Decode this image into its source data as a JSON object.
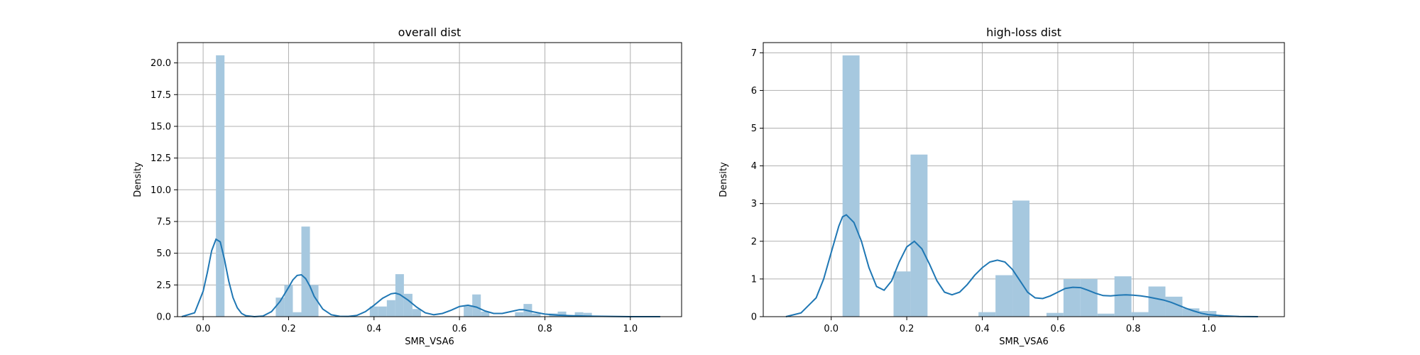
{
  "chart_data": [
    {
      "type": "bar",
      "title": "overall dist",
      "xlabel": "SMR_VSA6",
      "ylabel": "Density",
      "xlim": [
        -0.06,
        1.12
      ],
      "ylim": [
        0,
        21.6
      ],
      "xticks": [
        0.0,
        0.2,
        0.4,
        0.6,
        0.8,
        1.0
      ],
      "yticks": [
        0.0,
        2.5,
        5.0,
        7.5,
        10.0,
        12.5,
        15.0,
        17.5,
        20.0
      ],
      "grid": true,
      "bar_color": "#a6c8df",
      "kde_color": "#1f77b4",
      "histogram": [
        {
          "x0": 0.03,
          "x1": 0.05,
          "density": 20.6
        },
        {
          "x0": 0.17,
          "x1": 0.19,
          "density": 1.5
        },
        {
          "x0": 0.19,
          "x1": 0.21,
          "density": 2.5
        },
        {
          "x0": 0.21,
          "x1": 0.23,
          "density": 0.35
        },
        {
          "x0": 0.23,
          "x1": 0.25,
          "density": 7.1
        },
        {
          "x0": 0.25,
          "x1": 0.27,
          "density": 2.5
        },
        {
          "x0": 0.39,
          "x1": 0.41,
          "density": 0.8
        },
        {
          "x0": 0.41,
          "x1": 0.43,
          "density": 0.8
        },
        {
          "x0": 0.43,
          "x1": 0.45,
          "density": 1.3
        },
        {
          "x0": 0.45,
          "x1": 0.47,
          "density": 3.35
        },
        {
          "x0": 0.47,
          "x1": 0.49,
          "density": 1.8
        },
        {
          "x0": 0.49,
          "x1": 0.51,
          "density": 0.6
        },
        {
          "x0": 0.61,
          "x1": 0.63,
          "density": 0.85
        },
        {
          "x0": 0.63,
          "x1": 0.65,
          "density": 1.75
        },
        {
          "x0": 0.65,
          "x1": 0.67,
          "density": 0.4
        },
        {
          "x0": 0.73,
          "x1": 0.75,
          "density": 0.35
        },
        {
          "x0": 0.75,
          "x1": 0.77,
          "density": 1.0
        },
        {
          "x0": 0.77,
          "x1": 0.79,
          "density": 0.25
        },
        {
          "x0": 0.81,
          "x1": 0.83,
          "density": 0.25
        },
        {
          "x0": 0.83,
          "x1": 0.85,
          "density": 0.4
        },
        {
          "x0": 0.87,
          "x1": 0.89,
          "density": 0.35
        },
        {
          "x0": 0.89,
          "x1": 0.91,
          "density": 0.3
        }
      ],
      "kde": {
        "x": [
          -0.05,
          -0.02,
          0.0,
          0.01,
          0.02,
          0.03,
          0.04,
          0.05,
          0.06,
          0.07,
          0.08,
          0.09,
          0.1,
          0.12,
          0.14,
          0.16,
          0.18,
          0.2,
          0.21,
          0.22,
          0.23,
          0.24,
          0.25,
          0.26,
          0.28,
          0.3,
          0.32,
          0.34,
          0.36,
          0.38,
          0.4,
          0.42,
          0.44,
          0.45,
          0.46,
          0.48,
          0.5,
          0.52,
          0.54,
          0.56,
          0.58,
          0.6,
          0.62,
          0.64,
          0.66,
          0.68,
          0.7,
          0.72,
          0.74,
          0.75,
          0.77,
          0.8,
          0.83,
          0.86,
          0.9,
          0.95,
          1.0,
          1.07
        ],
        "y": [
          0.0,
          0.3,
          2.0,
          3.5,
          5.2,
          6.1,
          5.9,
          4.5,
          2.8,
          1.5,
          0.7,
          0.25,
          0.08,
          0.0,
          0.05,
          0.4,
          1.2,
          2.3,
          2.9,
          3.25,
          3.3,
          3.0,
          2.4,
          1.6,
          0.6,
          0.15,
          0.03,
          0.02,
          0.1,
          0.4,
          0.9,
          1.45,
          1.8,
          1.85,
          1.75,
          1.3,
          0.75,
          0.3,
          0.15,
          0.25,
          0.5,
          0.8,
          0.9,
          0.75,
          0.45,
          0.25,
          0.25,
          0.4,
          0.55,
          0.55,
          0.4,
          0.2,
          0.12,
          0.08,
          0.04,
          0.02,
          0.0,
          0.0
        ]
      }
    },
    {
      "type": "bar",
      "title": "high-loss dist",
      "xlabel": "SMR_VSA6",
      "ylabel": "Density",
      "xlim": [
        -0.18,
        1.2
      ],
      "ylim": [
        0,
        7.27
      ],
      "xticks": [
        0.0,
        0.2,
        0.4,
        0.6,
        0.8,
        1.0
      ],
      "yticks": [
        0,
        1,
        2,
        3,
        4,
        5,
        6,
        7
      ],
      "grid": true,
      "bar_color": "#a6c8df",
      "kde_color": "#1f77b4",
      "histogram": [
        {
          "x0": 0.03,
          "x1": 0.075,
          "density": 6.93
        },
        {
          "x0": 0.165,
          "x1": 0.21,
          "density": 1.2
        },
        {
          "x0": 0.21,
          "x1": 0.255,
          "density": 4.3
        },
        {
          "x0": 0.39,
          "x1": 0.435,
          "density": 0.12
        },
        {
          "x0": 0.435,
          "x1": 0.48,
          "density": 1.1
        },
        {
          "x0": 0.48,
          "x1": 0.525,
          "density": 3.08
        },
        {
          "x0": 0.57,
          "x1": 0.615,
          "density": 0.1
        },
        {
          "x0": 0.615,
          "x1": 0.66,
          "density": 1.0
        },
        {
          "x0": 0.66,
          "x1": 0.705,
          "density": 1.0
        },
        {
          "x0": 0.705,
          "x1": 0.75,
          "density": 0.08
        },
        {
          "x0": 0.75,
          "x1": 0.795,
          "density": 1.07
        },
        {
          "x0": 0.795,
          "x1": 0.84,
          "density": 0.12
        },
        {
          "x0": 0.84,
          "x1": 0.885,
          "density": 0.8
        },
        {
          "x0": 0.885,
          "x1": 0.93,
          "density": 0.53
        },
        {
          "x0": 0.93,
          "x1": 0.975,
          "density": 0.22
        },
        {
          "x0": 0.975,
          "x1": 1.02,
          "density": 0.15
        }
      ],
      "kde": {
        "x": [
          -0.12,
          -0.08,
          -0.04,
          -0.02,
          0.0,
          0.02,
          0.03,
          0.04,
          0.06,
          0.08,
          0.1,
          0.12,
          0.14,
          0.16,
          0.18,
          0.2,
          0.22,
          0.24,
          0.26,
          0.28,
          0.3,
          0.32,
          0.34,
          0.36,
          0.38,
          0.4,
          0.42,
          0.44,
          0.46,
          0.48,
          0.5,
          0.52,
          0.54,
          0.56,
          0.58,
          0.6,
          0.62,
          0.64,
          0.66,
          0.68,
          0.7,
          0.72,
          0.74,
          0.76,
          0.78,
          0.8,
          0.82,
          0.84,
          0.86,
          0.88,
          0.9,
          0.92,
          0.94,
          0.96,
          0.98,
          1.0,
          1.04,
          1.08,
          1.13
        ],
        "y": [
          0.0,
          0.1,
          0.5,
          1.0,
          1.7,
          2.4,
          2.65,
          2.7,
          2.5,
          2.0,
          1.3,
          0.8,
          0.7,
          0.95,
          1.45,
          1.85,
          2.0,
          1.8,
          1.4,
          0.95,
          0.65,
          0.58,
          0.65,
          0.85,
          1.1,
          1.3,
          1.45,
          1.5,
          1.45,
          1.25,
          0.95,
          0.65,
          0.5,
          0.48,
          0.55,
          0.65,
          0.75,
          0.78,
          0.77,
          0.7,
          0.62,
          0.56,
          0.55,
          0.57,
          0.58,
          0.57,
          0.55,
          0.52,
          0.48,
          0.44,
          0.38,
          0.3,
          0.22,
          0.15,
          0.09,
          0.05,
          0.02,
          0.005,
          0.0
        ]
      }
    }
  ]
}
